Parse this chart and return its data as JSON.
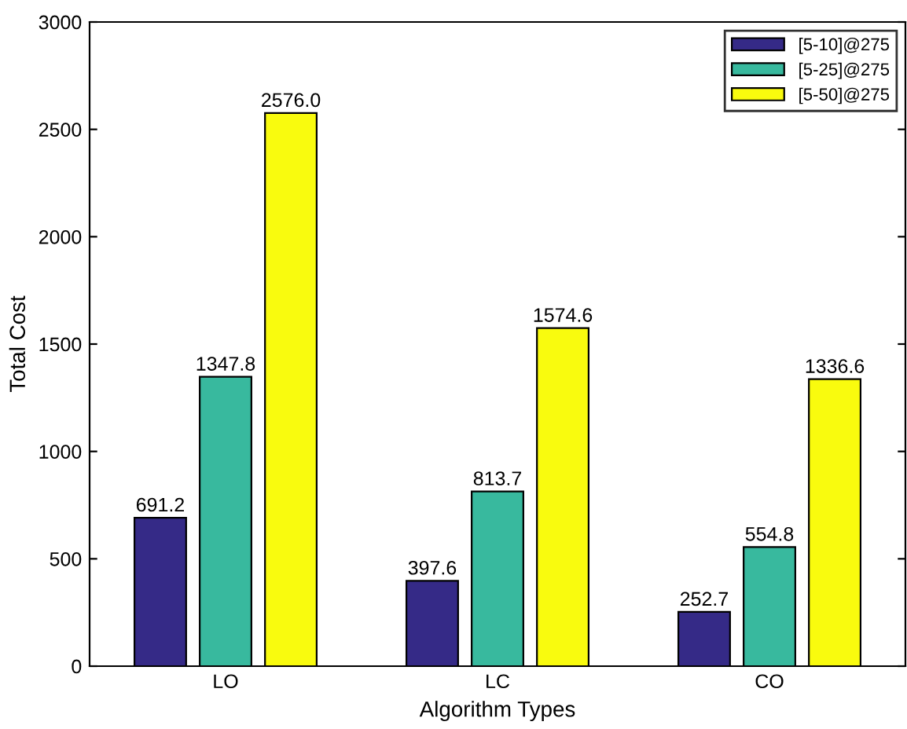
{
  "chart_data": {
    "type": "bar",
    "xlabel": "Algorithm Types",
    "ylabel": "Total Cost",
    "categories": [
      "LO",
      "LC",
      "CO"
    ],
    "series": [
      {
        "name": "[5-10]@275",
        "color": "#352a87",
        "values": [
          691.2,
          397.6,
          252.7
        ],
        "value_labels": [
          "691.2",
          "397.6",
          "252.7"
        ]
      },
      {
        "name": "[5-25]@275",
        "color": "#38b99e",
        "values": [
          1347.8,
          813.7,
          554.8
        ],
        "value_labels": [
          "1347.8",
          "813.7",
          "554.8"
        ]
      },
      {
        "name": "[5-50]@275",
        "color": "#f9fb0e",
        "values": [
          2576.0,
          1574.6,
          1336.6
        ],
        "value_labels": [
          "2576.0",
          "1574.6",
          "1336.6"
        ]
      }
    ],
    "ylim": [
      0,
      3000
    ],
    "yticks": [
      0,
      500,
      1000,
      1500,
      2000,
      2500,
      3000
    ],
    "legend": "top right",
    "grid": false
  }
}
